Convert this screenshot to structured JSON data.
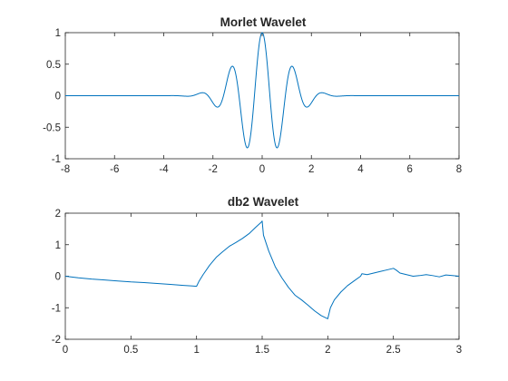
{
  "colors": {
    "series": "#0072BD",
    "axis": "#262626",
    "background": "#ffffff"
  },
  "chart_data": [
    {
      "type": "line",
      "title": "Morlet Wavelet",
      "xlabel": "",
      "ylabel": "",
      "xlim": [
        -8,
        8
      ],
      "ylim": [
        -1,
        1
      ],
      "xticks": [
        -8,
        -6,
        -4,
        -2,
        0,
        2,
        4,
        6,
        8
      ],
      "xtick_labels": [
        "-8",
        "-6",
        "-4",
        "-2",
        "0",
        "2",
        "4",
        "6",
        "8"
      ],
      "yticks": [
        -1,
        -0.5,
        0,
        0.5,
        1
      ],
      "ytick_labels": [
        "-1",
        "-0.5",
        "0",
        "0.5",
        "1"
      ],
      "grid": false,
      "legend": "none",
      "series": [
        {
          "formula": "exp(-x^2/2)*cos(5x)",
          "x_range": [
            -8,
            8
          ],
          "samples": 1024,
          "color": "#0072BD"
        }
      ]
    },
    {
      "type": "line",
      "title": "db2 Wavelet",
      "xlabel": "",
      "ylabel": "",
      "xlim": [
        0,
        3
      ],
      "ylim": [
        -2,
        2
      ],
      "xticks": [
        0,
        0.5,
        1,
        1.5,
        2,
        2.5,
        3
      ],
      "xtick_labels": [
        "0",
        "0.5",
        "1",
        "1.5",
        "2",
        "2.5",
        "3"
      ],
      "yticks": [
        -2,
        -1,
        0,
        1,
        2
      ],
      "ytick_labels": [
        "-2",
        "-1",
        "0",
        "1",
        "2"
      ],
      "grid": false,
      "legend": "none",
      "series": [
        {
          "color": "#0072BD",
          "x": [
            0,
            0.1,
            0.2,
            0.3,
            0.4,
            0.5,
            0.6,
            0.7,
            0.8,
            0.9,
            0.97,
            1.0,
            1.02,
            1.05,
            1.1,
            1.15,
            1.2,
            1.25,
            1.3,
            1.35,
            1.4,
            1.45,
            1.49,
            1.5,
            1.51,
            1.55,
            1.6,
            1.65,
            1.7,
            1.75,
            1.8,
            1.85,
            1.9,
            1.95,
            2.0,
            2.02,
            2.05,
            2.1,
            2.15,
            2.2,
            2.25,
            2.26,
            2.3,
            2.35,
            2.4,
            2.45,
            2.5,
            2.52,
            2.55,
            2.6,
            2.65,
            2.7,
            2.75,
            2.8,
            2.85,
            2.9,
            2.95,
            3.0
          ],
          "y": [
            0.0,
            -0.05,
            -0.09,
            -0.12,
            -0.15,
            -0.18,
            -0.2,
            -0.23,
            -0.26,
            -0.29,
            -0.31,
            -0.32,
            -0.15,
            0.05,
            0.35,
            0.6,
            0.78,
            0.95,
            1.07,
            1.2,
            1.35,
            1.55,
            1.7,
            1.75,
            1.3,
            0.8,
            0.3,
            -0.05,
            -0.35,
            -0.6,
            -0.75,
            -0.92,
            -1.1,
            -1.25,
            -1.35,
            -1.0,
            -0.75,
            -0.5,
            -0.3,
            -0.15,
            0.0,
            0.08,
            0.05,
            0.1,
            0.15,
            0.2,
            0.25,
            0.2,
            0.1,
            0.05,
            0.0,
            0.02,
            0.05,
            0.02,
            -0.02,
            0.04,
            0.02,
            0.0
          ]
        }
      ]
    }
  ]
}
